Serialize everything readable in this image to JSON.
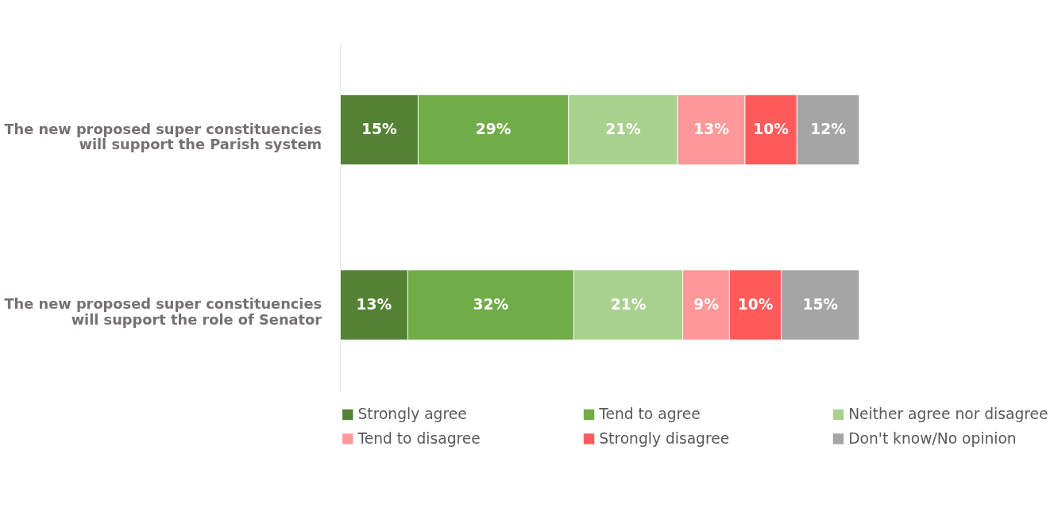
{
  "chart_data": {
    "type": "bar",
    "orientation": "horizontal",
    "stacked": true,
    "data_labels": true,
    "categories": [
      "The new proposed super constituencies\nwill support the Parish system",
      "The new proposed super constituencies\nwill support the role of  Senator"
    ],
    "tick_labels": "y",
    "grid": false,
    "legend": "bottom",
    "series": [
      {
        "name": "Strongly agree",
        "color": "#548235",
        "values": [
          15,
          13
        ],
        "value_labels": [
          "15%",
          "13%"
        ]
      },
      {
        "name": "Tend to agree",
        "color": "#70ad47",
        "values": [
          29,
          32
        ],
        "value_labels": [
          "29%",
          "32%"
        ]
      },
      {
        "name": "Neither agree nor disagree",
        "color": "#a9d18e",
        "values": [
          21,
          21
        ],
        "value_labels": [
          "21%",
          "21%"
        ]
      },
      {
        "name": "Tend to disagree",
        "color": "#ff9999",
        "values": [
          13,
          9
        ],
        "value_labels": [
          "13%",
          "9%"
        ]
      },
      {
        "name": "Strongly disagree",
        "color": "#ff5b5b",
        "values": [
          10,
          10
        ],
        "value_labels": [
          "10%",
          "10%"
        ]
      },
      {
        "name": "Don't know/No opinion",
        "color": "#a5a5a5",
        "values": [
          12,
          15
        ],
        "value_labels": [
          "12%",
          "15%"
        ]
      }
    ]
  }
}
